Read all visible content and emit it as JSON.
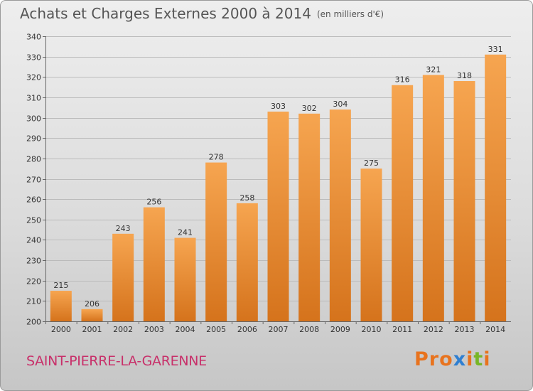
{
  "header": {
    "title": "Achats et Charges Externes 2000 à 2014",
    "subtitle": "(en milliers d'€)"
  },
  "footer": {
    "commune": "SAINT-PIERRE-LA-GARENNE",
    "brand": "Proxiti",
    "brand_colors": [
      "#e8731e",
      "#e8731e",
      "#e8731e",
      "#2f7fd1",
      "#e8731e",
      "#78b626",
      "#e8731e"
    ]
  },
  "colors": {
    "bar_top": "#f6a550",
    "bar_bottom": "#d5731c",
    "grid": "#bbbbbb",
    "axis": "#666666"
  },
  "chart_data": {
    "type": "bar",
    "title": "Achats et Charges Externes 2000 à 2014",
    "subtitle": "(en milliers d'€)",
    "categories": [
      "2000",
      "2001",
      "2002",
      "2003",
      "2004",
      "2005",
      "2006",
      "2007",
      "2008",
      "2009",
      "2010",
      "2011",
      "2012",
      "2013",
      "2014"
    ],
    "values": [
      215,
      206,
      243,
      256,
      241,
      278,
      258,
      303,
      302,
      304,
      275,
      316,
      321,
      318,
      331
    ],
    "ylim": [
      200,
      340
    ],
    "yticks": [
      200,
      210,
      220,
      230,
      240,
      250,
      260,
      270,
      280,
      290,
      300,
      310,
      320,
      330,
      340
    ],
    "grid": true,
    "data_labels": true
  }
}
